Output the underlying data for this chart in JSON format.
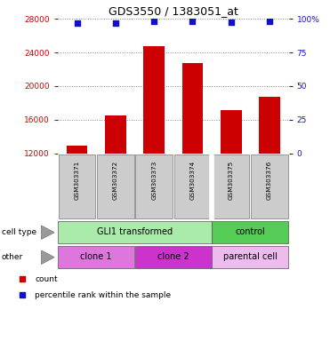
{
  "title": "GDS3550 / 1383051_at",
  "samples": [
    "GSM303371",
    "GSM303372",
    "GSM303373",
    "GSM303374",
    "GSM303375",
    "GSM303376"
  ],
  "counts": [
    12900,
    16500,
    24700,
    22700,
    17200,
    18700
  ],
  "percentile_ranks": [
    97,
    97,
    98,
    98,
    97.5,
    98
  ],
  "ylim_left": [
    12000,
    28000
  ],
  "ylim_right": [
    0,
    100
  ],
  "yticks_left": [
    12000,
    16000,
    20000,
    24000,
    28000
  ],
  "yticks_right": [
    0,
    25,
    50,
    75,
    100
  ],
  "bar_color": "#cc0000",
  "dot_color": "#1111cc",
  "bar_width": 0.55,
  "cell_type_groups": [
    {
      "label": "GLI1 transformed",
      "color": "#aaeaaa",
      "span": [
        0,
        4
      ]
    },
    {
      "label": "control",
      "color": "#55cc55",
      "span": [
        4,
        6
      ]
    }
  ],
  "other_groups": [
    {
      "label": "clone 1",
      "color": "#dd77dd",
      "span": [
        0,
        2
      ]
    },
    {
      "label": "clone 2",
      "color": "#cc33cc",
      "span": [
        2,
        4
      ]
    },
    {
      "label": "parental cell",
      "color": "#eebbee",
      "span": [
        4,
        6
      ]
    }
  ],
  "legend_count_label": "count",
  "legend_percentile_label": "percentile rank within the sample",
  "tick_color_left": "#cc0000",
  "tick_color_right": "#1111cc",
  "bg_color": "#ffffff",
  "sample_box_color": "#cccccc",
  "grid_dotted_color": "#888888"
}
